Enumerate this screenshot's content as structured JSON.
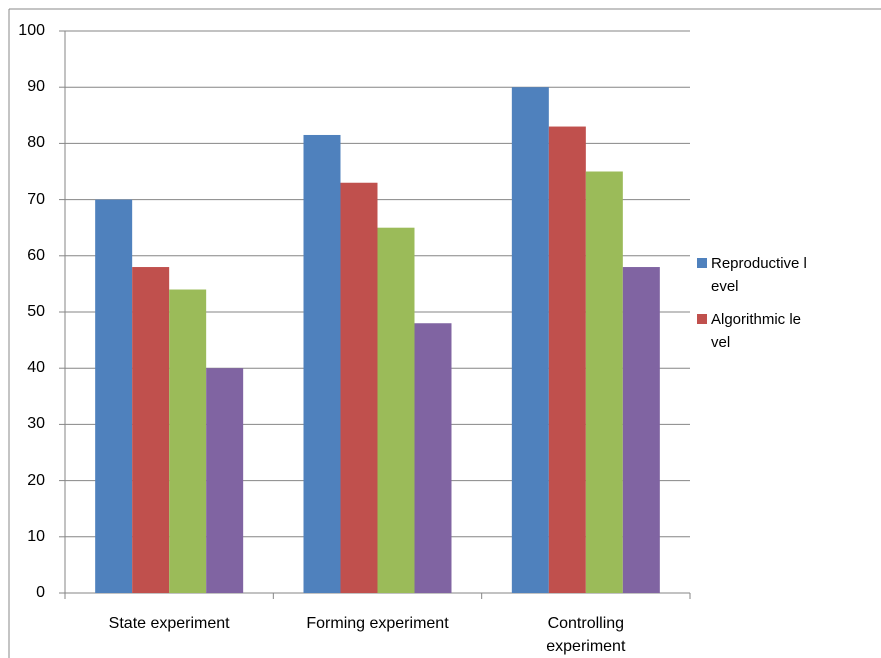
{
  "chart_data": {
    "type": "bar",
    "categories": [
      "State experiment",
      "Forming experiment",
      "Controlling experiment"
    ],
    "series": [
      {
        "name": "Reproductive level",
        "color": "#4f81bd",
        "values": [
          70,
          81.5,
          90
        ]
      },
      {
        "name": "Algorithmic level",
        "color": "#c0504d",
        "values": [
          58,
          73,
          83
        ]
      },
      {
        "color": "#9bbb59",
        "values": [
          54,
          65,
          75
        ]
      },
      {
        "color": "#8064a2",
        "values": [
          40,
          48,
          58
        ]
      }
    ],
    "ylim": [
      0,
      100
    ],
    "yticks": [
      0,
      10,
      20,
      30,
      40,
      50,
      60,
      70,
      80,
      90,
      100
    ],
    "grid": true,
    "legend": "right"
  }
}
